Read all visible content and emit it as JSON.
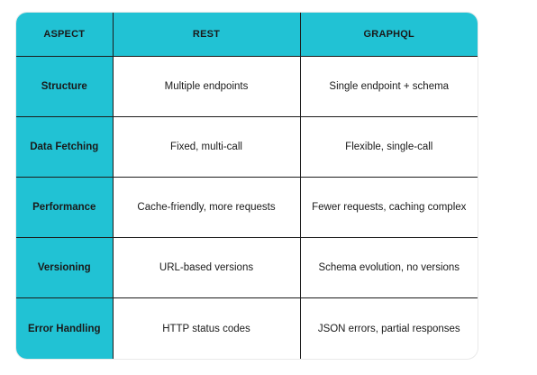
{
  "table": {
    "headers": [
      "ASPECT",
      "REST",
      "GRAPHQL"
    ],
    "rows": [
      {
        "aspect": "Structure",
        "rest": "Multiple endpoints",
        "graphql": "Single endpoint + schema"
      },
      {
        "aspect": "Data Fetching",
        "rest": "Fixed, multi-call",
        "graphql": "Flexible, single-call"
      },
      {
        "aspect": "Performance",
        "rest": "Cache-friendly, more requests",
        "graphql": "Fewer requests, caching complex"
      },
      {
        "aspect": "Versioning",
        "rest": "URL-based versions",
        "graphql": "Schema evolution, no versions"
      },
      {
        "aspect": "Error Handling",
        "rest": "HTTP status codes",
        "graphql": "JSON errors, partial responses"
      }
    ]
  },
  "colors": {
    "header_bg": "#21c2d4",
    "border": "#1c1c1c"
  }
}
